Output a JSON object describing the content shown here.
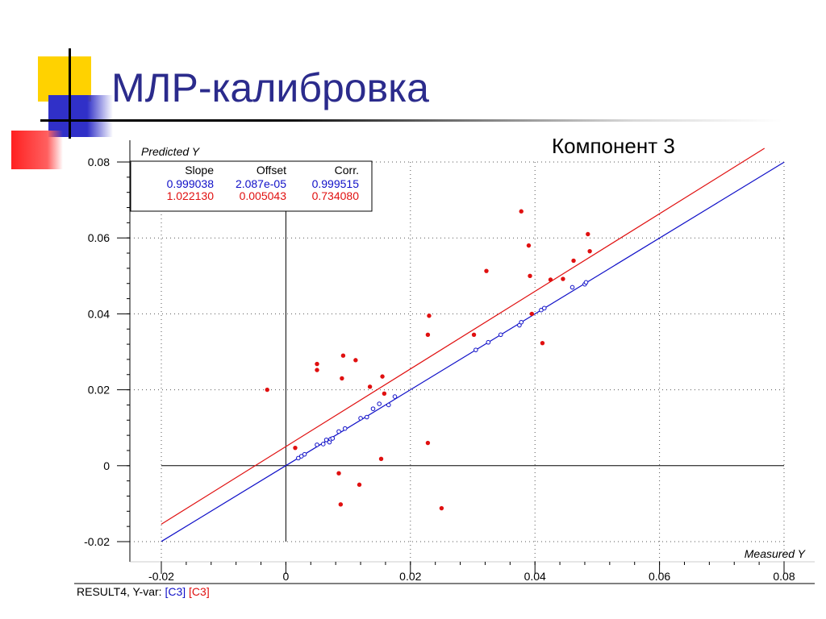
{
  "slide": {
    "title": "МЛР-калибровка",
    "component_label": "Компонент 3"
  },
  "footer": {
    "prefix": "RESULT4, Y-var: ",
    "var_blue": "[C3]",
    "separator": " ",
    "var_red": "[C3]"
  },
  "colors": {
    "title": "#2b2b8c",
    "calibration": "#1010c8",
    "validation": "#e01010",
    "deco_yellow": "#ffd200",
    "deco_blue": "#3030c8",
    "deco_red": "#ff2020"
  },
  "chart_data": {
    "type": "scatter",
    "ylabel": "Predicted Y",
    "xlabel": "Measured Y",
    "xlim": [
      -0.02,
      0.08
    ],
    "ylim": [
      -0.02,
      0.08
    ],
    "x_ticks": [
      "-0.02",
      "0",
      "0.02",
      "0.04",
      "0.06",
      "0.08"
    ],
    "y_ticks": [
      "-0.02",
      "0",
      "0.02",
      "0.04",
      "0.06",
      "0.08"
    ],
    "grid": true,
    "stats_table": {
      "headers": [
        "Slope",
        "Offset",
        "Corr."
      ],
      "rows": [
        {
          "series": "calibration",
          "values": [
            "0.999038",
            "2.087e-05",
            "0.999515"
          ]
        },
        {
          "series": "validation",
          "values": [
            "1.022130",
            "0.005043",
            "0.734080"
          ]
        }
      ]
    },
    "series": [
      {
        "key": "calibration",
        "marker": "open-circle",
        "slope": 0.999038,
        "offset": 2.087e-05,
        "points": [
          [
            0.002,
            0.002
          ],
          [
            0.0025,
            0.0025
          ],
          [
            0.003,
            0.003
          ],
          [
            0.005,
            0.0055
          ],
          [
            0.006,
            0.0057
          ],
          [
            0.0065,
            0.0068
          ],
          [
            0.007,
            0.0062
          ],
          [
            0.0072,
            0.007
          ],
          [
            0.0075,
            0.0072
          ],
          [
            0.0085,
            0.009
          ],
          [
            0.0095,
            0.0098
          ],
          [
            0.012,
            0.0125
          ],
          [
            0.013,
            0.0128
          ],
          [
            0.014,
            0.015
          ],
          [
            0.015,
            0.0163
          ],
          [
            0.0165,
            0.016
          ],
          [
            0.0175,
            0.0182
          ],
          [
            0.0305,
            0.0305
          ],
          [
            0.0325,
            0.0325
          ],
          [
            0.0345,
            0.0345
          ],
          [
            0.0375,
            0.037
          ],
          [
            0.0378,
            0.0378
          ],
          [
            0.041,
            0.041
          ],
          [
            0.0415,
            0.0415
          ],
          [
            0.046,
            0.047
          ],
          [
            0.048,
            0.0478
          ],
          [
            0.0482,
            0.0483
          ]
        ]
      },
      {
        "key": "validation",
        "marker": "filled-dot",
        "slope": 1.02213,
        "offset": 0.005043,
        "points": [
          [
            -0.003,
            0.02
          ],
          [
            0.0015,
            0.0047
          ],
          [
            0.005,
            0.0252
          ],
          [
            0.005,
            0.0268
          ],
          [
            0.0085,
            -0.002
          ],
          [
            0.0088,
            -0.0102
          ],
          [
            0.009,
            0.023
          ],
          [
            0.0092,
            0.029
          ],
          [
            0.0112,
            0.0278
          ],
          [
            0.0118,
            -0.005
          ],
          [
            0.0135,
            0.0208
          ],
          [
            0.0153,
            0.0018
          ],
          [
            0.0155,
            0.0235
          ],
          [
            0.0158,
            0.019
          ],
          [
            0.0228,
            0.006
          ],
          [
            0.0228,
            0.0345
          ],
          [
            0.023,
            0.0395
          ],
          [
            0.025,
            -0.0112
          ],
          [
            0.0302,
            0.0345
          ],
          [
            0.0322,
            0.0513
          ],
          [
            0.0378,
            0.067
          ],
          [
            0.039,
            0.058
          ],
          [
            0.0392,
            0.05
          ],
          [
            0.0395,
            0.04
          ],
          [
            0.0412,
            0.0323
          ],
          [
            0.0425,
            0.049
          ],
          [
            0.0445,
            0.0492
          ],
          [
            0.0462,
            0.054
          ],
          [
            0.0485,
            0.061
          ],
          [
            0.0488,
            0.0565
          ]
        ]
      }
    ]
  }
}
